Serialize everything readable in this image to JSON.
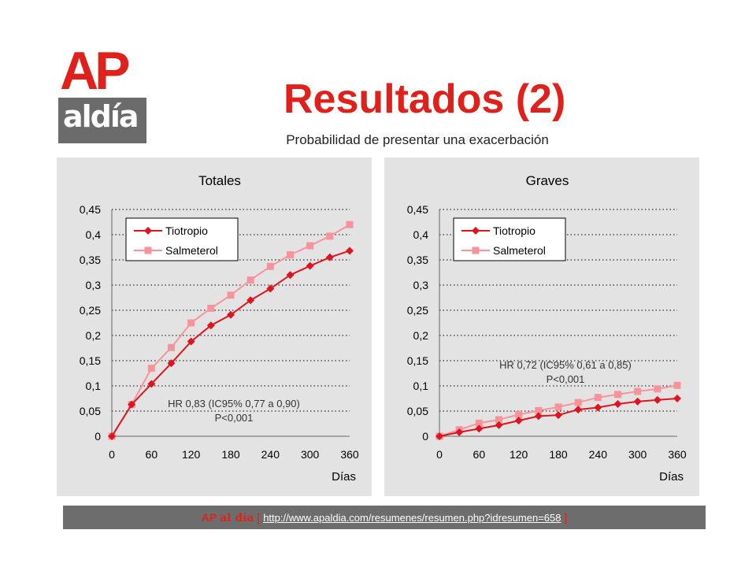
{
  "logo": {
    "top": "AP",
    "bottom": "aldía"
  },
  "page": {
    "title": "Resultados (2)",
    "subtitle": "Probabilidad de presentar una exacerbación"
  },
  "footer": {
    "brand_ap": "AP",
    "brand_aldia": "al día",
    "bracket_open": "[",
    "url": "http://www.apaldia.com/resumenes/resumen.php?idresumen=658",
    "bracket_close": "]"
  },
  "colors": {
    "brand_red": "#e0211b",
    "tiotropio": "#e0141e",
    "salmeterol": "#f7949b",
    "panel_bg": "#e3e3e3"
  },
  "chart_data": [
    {
      "type": "line",
      "title": "Totales",
      "xlabel": "Días",
      "ylabel": "",
      "xlim": [
        0,
        360
      ],
      "ylim": [
        0,
        0.45
      ],
      "x_ticks": [
        0,
        60,
        120,
        180,
        240,
        300,
        360
      ],
      "y_ticks": [
        0,
        0.05,
        0.1,
        0.15,
        0.2,
        0.25,
        0.3,
        0.35,
        0.4,
        0.45
      ],
      "x_tick_labels": [
        "0",
        "60",
        "120",
        "180",
        "240",
        "300",
        "360"
      ],
      "y_tick_labels": [
        "0",
        "0,05",
        "0,1",
        "0,15",
        "0,2",
        "0,25",
        "0,3",
        "0,35",
        "0,4",
        "0,45"
      ],
      "grid": "horizontal-dotted",
      "legend": "top-left",
      "x": [
        0,
        30,
        60,
        90,
        120,
        150,
        180,
        210,
        240,
        270,
        300,
        330,
        360
      ],
      "series": [
        {
          "name": "Tiotropio",
          "marker": "diamond",
          "values": [
            0,
            0.063,
            0.104,
            0.145,
            0.188,
            0.22,
            0.241,
            0.27,
            0.293,
            0.32,
            0.338,
            0.355,
            0.368
          ]
        },
        {
          "name": "Salmeterol",
          "marker": "square",
          "values": [
            0,
            0.063,
            0.135,
            0.176,
            0.225,
            0.254,
            0.28,
            0.31,
            0.337,
            0.36,
            0.378,
            0.397,
            0.42
          ]
        }
      ],
      "annotation": {
        "line1": "HR 0,83 (IC95% 0,77 a 0,90)",
        "line2": "P<0,001"
      }
    },
    {
      "type": "line",
      "title": "Graves",
      "xlabel": "Días",
      "ylabel": "",
      "xlim": [
        0,
        360
      ],
      "ylim": [
        0,
        0.45
      ],
      "x_ticks": [
        0,
        60,
        120,
        180,
        240,
        300,
        360
      ],
      "y_ticks": [
        0,
        0.05,
        0.1,
        0.15,
        0.2,
        0.25,
        0.3,
        0.35,
        0.4,
        0.45
      ],
      "x_tick_labels": [
        "0",
        "60",
        "120",
        "180",
        "240",
        "300",
        "360"
      ],
      "y_tick_labels": [
        "0",
        "0,05",
        "0,1",
        "0,15",
        "0,2",
        "0,25",
        "0,3",
        "0,35",
        "0,4",
        "0,45"
      ],
      "grid": "horizontal-dotted",
      "legend": "top-left",
      "x": [
        0,
        30,
        60,
        90,
        120,
        150,
        180,
        210,
        240,
        270,
        300,
        330,
        360
      ],
      "series": [
        {
          "name": "Tiotropio",
          "marker": "diamond",
          "values": [
            0,
            0.008,
            0.015,
            0.022,
            0.031,
            0.04,
            0.042,
            0.053,
            0.057,
            0.064,
            0.069,
            0.072,
            0.075
          ]
        },
        {
          "name": "Salmeterol",
          "marker": "square",
          "values": [
            0,
            0.013,
            0.026,
            0.033,
            0.043,
            0.051,
            0.058,
            0.067,
            0.077,
            0.083,
            0.089,
            0.094,
            0.101
          ]
        }
      ],
      "annotation": {
        "line1": "HR 0,72 (IC95% 0,61 a 0,85)",
        "line2": "P<0,001"
      }
    }
  ]
}
